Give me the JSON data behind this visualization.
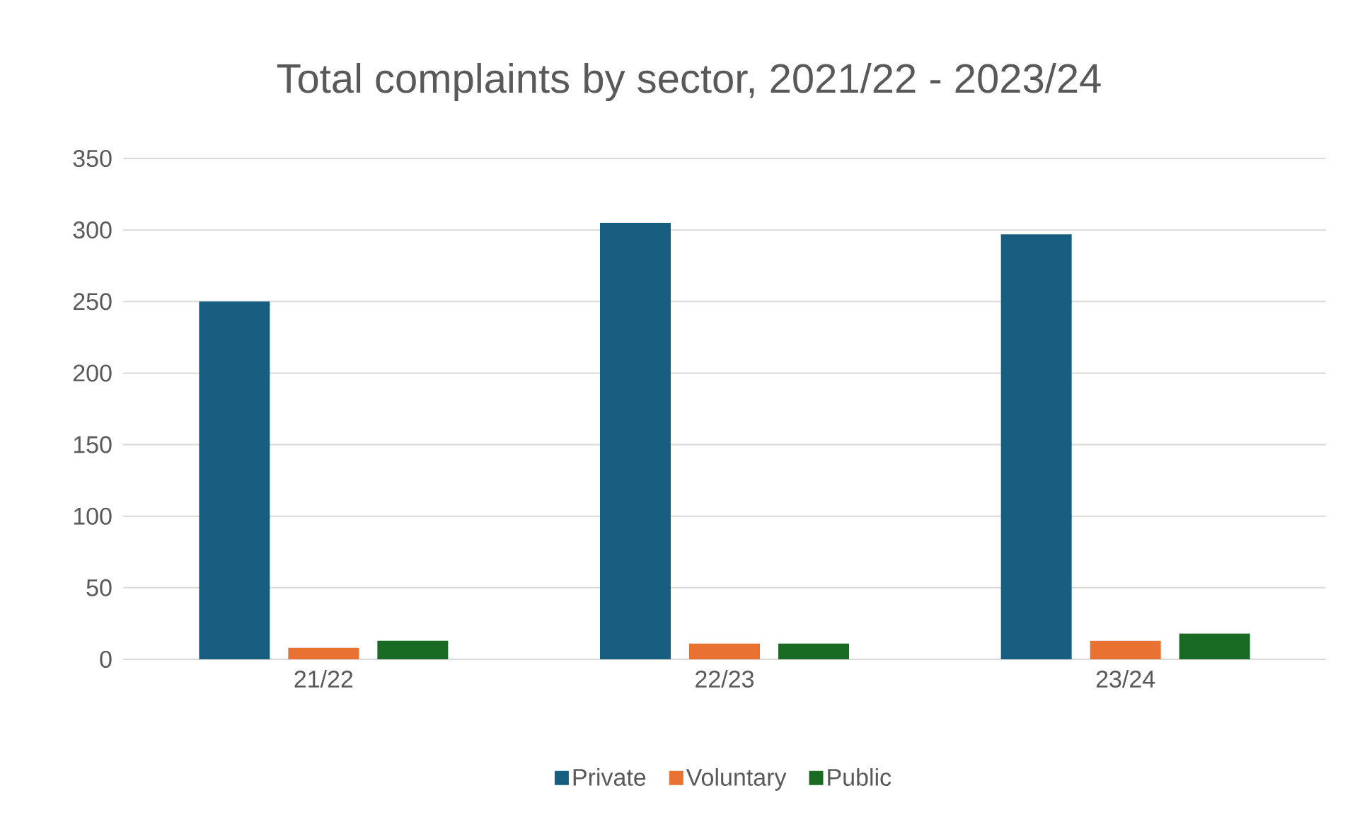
{
  "chart_data": {
    "type": "bar",
    "title": "Total complaints by sector, 2021/22 - 2023/24",
    "categories": [
      "21/22",
      "22/23",
      "23/24"
    ],
    "series": [
      {
        "name": "Private",
        "color": "#175e80",
        "values": [
          250,
          305,
          297
        ]
      },
      {
        "name": "Voluntary",
        "color": "#e97132",
        "values": [
          8,
          11,
          13
        ]
      },
      {
        "name": "Public",
        "color": "#196b24",
        "values": [
          13,
          11,
          18
        ]
      }
    ],
    "ylim": [
      0,
      350
    ],
    "yticks": [
      0,
      50,
      100,
      150,
      200,
      250,
      300,
      350
    ],
    "grid": "y",
    "legend": "bottom"
  }
}
